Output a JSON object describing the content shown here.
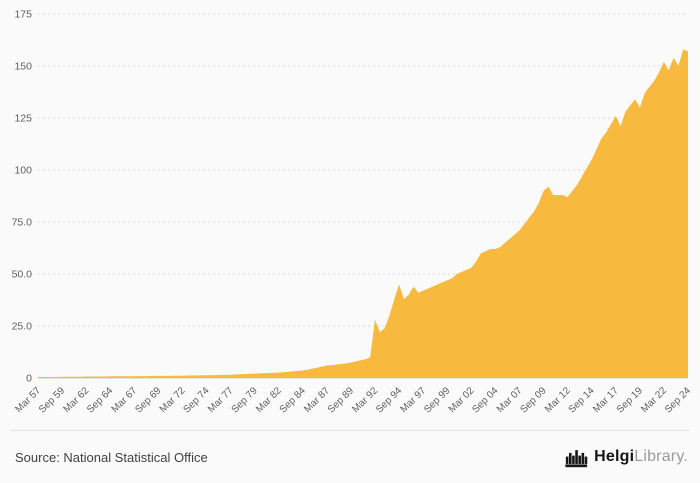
{
  "page": {
    "background": "#fafafa"
  },
  "footer": {
    "source_text": "Source: National Statistical Office",
    "brand": {
      "bold": "Helgi",
      "light": "Library",
      "suffix": "."
    }
  },
  "chart_data": {
    "type": "area",
    "title": "",
    "xlabel": "",
    "ylabel": "",
    "frequency": "semiannual",
    "x_labels": [
      "Mar 57",
      "Sep 59",
      "Mar 62",
      "Sep 64",
      "Mar 67",
      "Sep 69",
      "Mar 72",
      "Sep 74",
      "Mar 77",
      "Sep 79",
      "Mar 82",
      "Sep 84",
      "Mar 87",
      "Sep 89",
      "Mar 92",
      "Sep 94",
      "Mar 97",
      "Sep 99",
      "Mar 02",
      "Sep 04",
      "Mar 07",
      "Sep 09",
      "Mar 12",
      "Sep 14",
      "Mar 17",
      "Sep 19",
      "Mar 22",
      "Sep 24"
    ],
    "label_every": 5,
    "values": [
      0.5,
      0.5,
      0.5,
      0.5,
      0.5,
      0.6,
      0.6,
      0.6,
      0.6,
      0.6,
      0.7,
      0.7,
      0.7,
      0.7,
      0.7,
      0.8,
      0.8,
      0.8,
      0.8,
      0.8,
      0.9,
      0.9,
      0.9,
      0.9,
      1.0,
      1.0,
      1.0,
      1.0,
      1.1,
      1.1,
      1.1,
      1.2,
      1.2,
      1.2,
      1.3,
      1.3,
      1.4,
      1.4,
      1.5,
      1.5,
      1.6,
      1.7,
      1.8,
      1.9,
      2.0,
      2.1,
      2.2,
      2.3,
      2.4,
      2.5,
      2.6,
      2.8,
      3.0,
      3.2,
      3.4,
      3.6,
      4.0,
      4.5,
      5.0,
      5.5,
      6.0,
      6.2,
      6.5,
      6.8,
      7.0,
      7.5,
      8.0,
      8.5,
      9.0,
      10.0,
      28.0,
      22.0,
      24.0,
      30.0,
      38.0,
      45.0,
      38.0,
      40.0,
      44.0,
      41.0,
      42.0,
      43.0,
      44.0,
      45.0,
      46.0,
      47.0,
      48.0,
      50.0,
      51.0,
      52.0,
      53.0,
      56.0,
      60.0,
      61.0,
      62.0,
      62.0,
      63.0,
      65.0,
      67.0,
      69.0,
      71.0,
      74.0,
      77.0,
      80.0,
      84.0,
      90.0,
      92.0,
      88.0,
      88.0,
      88.0,
      87.0,
      90.0,
      93.0,
      97.0,
      101.0,
      105.0,
      110.0,
      115.0,
      118.0,
      122.0,
      126.0,
      121.0,
      128.0,
      131.0,
      134.0,
      130.0,
      137.0,
      140.0,
      143.0,
      147.0,
      152.0,
      148.0,
      154.0,
      150.0,
      158.0,
      157.0
    ],
    "ylim": [
      0,
      175
    ],
    "yticks": [
      0,
      25,
      50,
      75,
      100,
      125,
      150,
      175
    ],
    "ytick_labels": [
      "0",
      "25.0",
      "50.0",
      "75.0",
      "100",
      "125",
      "150",
      "175"
    ],
    "grid": "dotted-horizontal",
    "legend": "none",
    "area_color": "#f7ba3e",
    "axis_text_color": "#5f5f5f",
    "grid_color": "#d9d9d9",
    "baseline_color": "#cccccc"
  }
}
